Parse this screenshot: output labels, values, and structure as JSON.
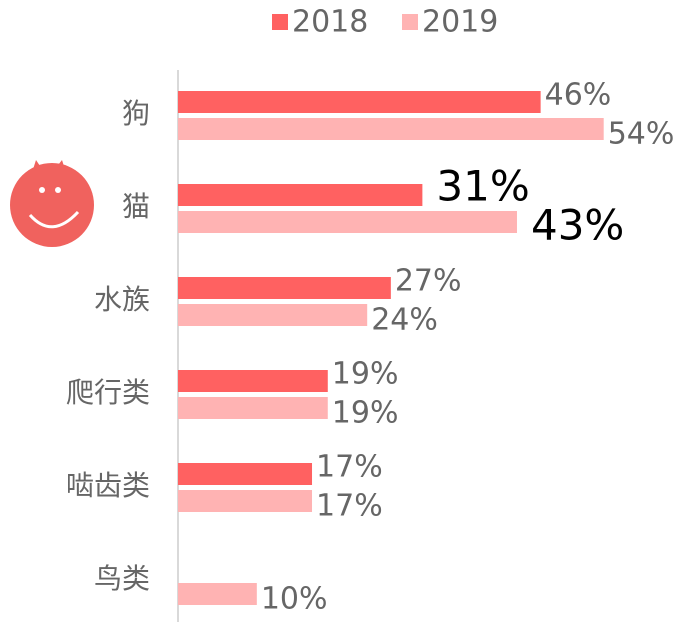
{
  "chart_data": {
    "type": "bar",
    "orientation": "horizontal",
    "categories": [
      "狗",
      "猫",
      "水族",
      "爬行类",
      "啮齿类",
      "鸟类"
    ],
    "series": [
      {
        "name": "2018",
        "color": "#ff6161",
        "values": [
          46,
          31,
          27,
          19,
          17,
          null
        ],
        "value_labels": [
          "46%",
          "31%",
          "27%",
          "19%",
          "17%",
          null
        ]
      },
      {
        "name": "2019",
        "color": "#ffb3b3",
        "values": [
          54,
          43,
          24,
          19,
          17,
          10
        ],
        "value_labels": [
          "54%",
          "43%",
          "24%",
          "19%",
          "17%",
          "10%"
        ]
      }
    ],
    "xlim": [
      0,
      60
    ],
    "highlight_index": 1,
    "legend": "top"
  }
}
